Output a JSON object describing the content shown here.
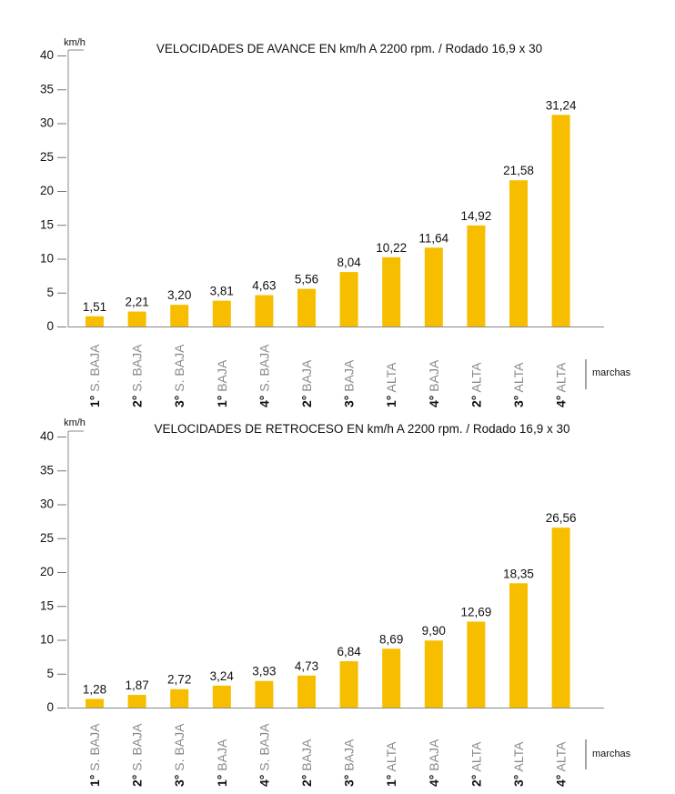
{
  "chart_data": [
    {
      "type": "bar",
      "title": "VELOCIDADES DE AVANCE EN km/h A 2200 rpm. / Rodado 16,9 x 30",
      "ylabel": "km/h",
      "xlabel": "marchas",
      "ylim": [
        0,
        40
      ],
      "yticks": [
        "0",
        "5",
        "10",
        "15",
        "20",
        "25",
        "30",
        "35",
        "40"
      ],
      "categories": [
        {
          "num": "1°",
          "text": " S. BAJA"
        },
        {
          "num": "2°",
          "text": " S. BAJA"
        },
        {
          "num": "3°",
          "text": " S. BAJA"
        },
        {
          "num": "1°",
          "text": " BAJA"
        },
        {
          "num": "4°",
          "text": " S. BAJA"
        },
        {
          "num": "2°",
          "text": " BAJA"
        },
        {
          "num": "3°",
          "text": " BAJA"
        },
        {
          "num": "1°",
          "text": " ALTA"
        },
        {
          "num": "4°",
          "text": " BAJA"
        },
        {
          "num": "2°",
          "text": " ALTA"
        },
        {
          "num": "3°",
          "text": " ALTA"
        },
        {
          "num": "4°",
          "text": " ALTA"
        }
      ],
      "values": [
        1.51,
        2.21,
        3.2,
        3.81,
        4.63,
        5.56,
        8.04,
        10.22,
        11.64,
        14.92,
        21.58,
        31.24
      ],
      "value_labels": [
        "1,51",
        "2,21",
        "3,20",
        "3,81",
        "4,63",
        "5,56",
        "8,04",
        "10,22",
        "11,64",
        "14,92",
        "21,58",
        "31,24"
      ],
      "grid": false,
      "bar_color": "#f7be00"
    },
    {
      "type": "bar",
      "title": "VELOCIDADES DE RETROCESO EN km/h A 2200 rpm. / Rodado 16,9 x 30",
      "ylabel": "km/h",
      "xlabel": "marchas",
      "ylim": [
        0,
        40
      ],
      "yticks": [
        "0",
        "5",
        "10",
        "15",
        "20",
        "25",
        "30",
        "35",
        "40"
      ],
      "categories": [
        {
          "num": "1°",
          "text": " S. BAJA"
        },
        {
          "num": "2°",
          "text": " S. BAJA"
        },
        {
          "num": "3°",
          "text": " S. BAJA"
        },
        {
          "num": "1°",
          "text": " BAJA"
        },
        {
          "num": "4°",
          "text": " S. BAJA"
        },
        {
          "num": "2°",
          "text": " BAJA"
        },
        {
          "num": "3°",
          "text": " BAJA"
        },
        {
          "num": "1°",
          "text": " ALTA"
        },
        {
          "num": "4°",
          "text": " BAJA"
        },
        {
          "num": "2°",
          "text": " ALTA"
        },
        {
          "num": "3°",
          "text": " ALTA"
        },
        {
          "num": "4°",
          "text": " ALTA"
        }
      ],
      "values": [
        1.28,
        1.87,
        2.72,
        3.24,
        3.93,
        4.73,
        6.84,
        8.69,
        9.9,
        12.69,
        18.35,
        26.56
      ],
      "value_labels": [
        "1,28",
        "1,87",
        "2,72",
        "3,24",
        "3,93",
        "4,73",
        "6,84",
        "8,69",
        "9,90",
        "12,69",
        "18,35",
        "26,56"
      ],
      "grid": false,
      "bar_color": "#f7be00"
    }
  ]
}
